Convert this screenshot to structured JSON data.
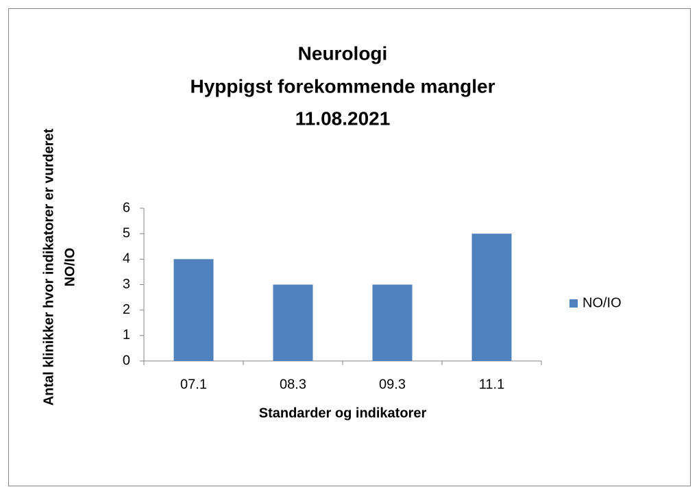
{
  "chart_data": {
    "type": "bar",
    "title": [
      "Neurologi",
      "Hyppigst forekommende mangler",
      "11.08.2021"
    ],
    "x_label": "Standarder og indikatorer",
    "y_label": [
      "Antal klinikker hvor indikatorer er vurderet",
      "NO/IO"
    ],
    "categories": [
      "07.1",
      "08.3",
      "09.3",
      "11.1"
    ],
    "series": [
      {
        "name": "NO/IO",
        "color": "#4f81bd",
        "values": [
          4,
          3,
          3,
          5
        ]
      }
    ],
    "ylim": [
      0,
      6
    ],
    "yticks": [
      0,
      1,
      2,
      3,
      4,
      5,
      6
    ],
    "grid": false,
    "legend": "right"
  }
}
